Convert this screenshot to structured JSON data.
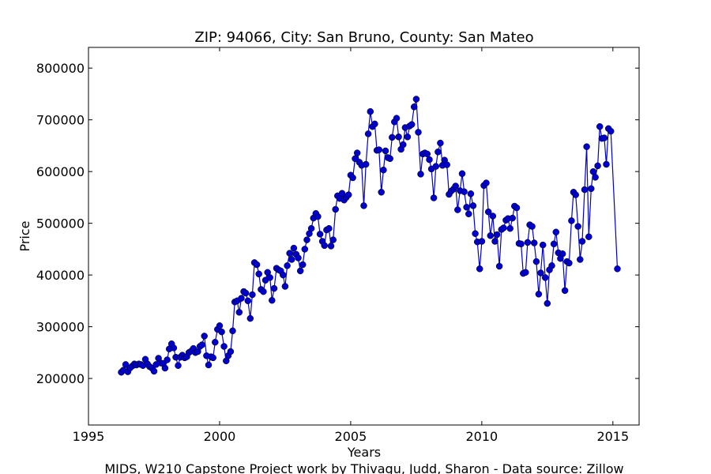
{
  "chart_data": {
    "type": "line",
    "title": "ZIP: 94066, City: San Bruno, County: San Mateo",
    "xlabel": "Years",
    "ylabel": "Price",
    "caption": "MIDS, W210 Capstone Project work by Thivagu, Judd, Sharon  -  Data source: Zillow",
    "xlim": [
      1995,
      2016
    ],
    "ylim": [
      110000,
      840000
    ],
    "x_ticks": [
      1995,
      2000,
      2005,
      2010,
      2015
    ],
    "x_tick_labels": [
      "1995",
      "2000",
      "2005",
      "2010",
      "2015"
    ],
    "y_ticks": [
      200000,
      300000,
      400000,
      500000,
      600000,
      700000,
      800000
    ],
    "y_tick_labels": [
      "200000",
      "300000",
      "400000",
      "500000",
      "600000",
      "700000",
      "800000"
    ],
    "grid": false,
    "series": [
      {
        "color": "#0000cc",
        "marker": "circle",
        "points": [
          [
            1996.25,
            212000
          ],
          [
            1996.33,
            216000
          ],
          [
            1996.42,
            227000
          ],
          [
            1996.5,
            213000
          ],
          [
            1996.58,
            220000
          ],
          [
            1996.67,
            224000
          ],
          [
            1996.75,
            228000
          ],
          [
            1996.83,
            226000
          ],
          [
            1996.92,
            228000
          ],
          [
            1997.0,
            227000
          ],
          [
            1997.08,
            225000
          ],
          [
            1997.17,
            237000
          ],
          [
            1997.25,
            228000
          ],
          [
            1997.33,
            223000
          ],
          [
            1997.42,
            220000
          ],
          [
            1997.5,
            214000
          ],
          [
            1997.58,
            227000
          ],
          [
            1997.67,
            239000
          ],
          [
            1997.75,
            230000
          ],
          [
            1997.83,
            229000
          ],
          [
            1997.92,
            220000
          ],
          [
            1998.0,
            236000
          ],
          [
            1998.08,
            257000
          ],
          [
            1998.17,
            267000
          ],
          [
            1998.25,
            259000
          ],
          [
            1998.33,
            241000
          ],
          [
            1998.42,
            225000
          ],
          [
            1998.5,
            241000
          ],
          [
            1998.58,
            245000
          ],
          [
            1998.67,
            240000
          ],
          [
            1998.75,
            242000
          ],
          [
            1998.83,
            250000
          ],
          [
            1998.92,
            253000
          ],
          [
            1999.0,
            258000
          ],
          [
            1999.08,
            250000
          ],
          [
            1999.17,
            252000
          ],
          [
            1999.25,
            262000
          ],
          [
            1999.33,
            265000
          ],
          [
            1999.42,
            282000
          ],
          [
            1999.5,
            244000
          ],
          [
            1999.58,
            226000
          ],
          [
            1999.67,
            242000
          ],
          [
            1999.75,
            240000
          ],
          [
            1999.83,
            270000
          ],
          [
            1999.92,
            295000
          ],
          [
            2000.0,
            302000
          ],
          [
            2000.08,
            290000
          ],
          [
            2000.17,
            262000
          ],
          [
            2000.25,
            234000
          ],
          [
            2000.33,
            244000
          ],
          [
            2000.42,
            252000
          ],
          [
            2000.5,
            292000
          ],
          [
            2000.58,
            348000
          ],
          [
            2000.67,
            350000
          ],
          [
            2000.75,
            328000
          ],
          [
            2000.83,
            355000
          ],
          [
            2000.92,
            368000
          ],
          [
            2001.0,
            365000
          ],
          [
            2001.08,
            350000
          ],
          [
            2001.17,
            316000
          ],
          [
            2001.25,
            362000
          ],
          [
            2001.33,
            424000
          ],
          [
            2001.42,
            420000
          ],
          [
            2001.5,
            402000
          ],
          [
            2001.58,
            372000
          ],
          [
            2001.67,
            368000
          ],
          [
            2001.75,
            390000
          ],
          [
            2001.83,
            405000
          ],
          [
            2001.92,
            395000
          ],
          [
            2002.0,
            351000
          ],
          [
            2002.08,
            374000
          ],
          [
            2002.17,
            413000
          ],
          [
            2002.25,
            410000
          ],
          [
            2002.33,
            408000
          ],
          [
            2002.42,
            400000
          ],
          [
            2002.5,
            378000
          ],
          [
            2002.58,
            418000
          ],
          [
            2002.67,
            442000
          ],
          [
            2002.75,
            430000
          ],
          [
            2002.83,
            452000
          ],
          [
            2002.92,
            440000
          ],
          [
            2003.0,
            433000
          ],
          [
            2003.08,
            408000
          ],
          [
            2003.17,
            420000
          ],
          [
            2003.25,
            450000
          ],
          [
            2003.33,
            468000
          ],
          [
            2003.42,
            480000
          ],
          [
            2003.5,
            490000
          ],
          [
            2003.58,
            510000
          ],
          [
            2003.67,
            519000
          ],
          [
            2003.75,
            513000
          ],
          [
            2003.83,
            479000
          ],
          [
            2003.92,
            465000
          ],
          [
            2004.0,
            457000
          ],
          [
            2004.08,
            487000
          ],
          [
            2004.17,
            490000
          ],
          [
            2004.25,
            456000
          ],
          [
            2004.33,
            468000
          ],
          [
            2004.42,
            527000
          ],
          [
            2004.5,
            553000
          ],
          [
            2004.58,
            548000
          ],
          [
            2004.67,
            558000
          ],
          [
            2004.75,
            545000
          ],
          [
            2004.83,
            550000
          ],
          [
            2004.92,
            555000
          ],
          [
            2005.0,
            593000
          ],
          [
            2005.08,
            588000
          ],
          [
            2005.17,
            625000
          ],
          [
            2005.25,
            636000
          ],
          [
            2005.33,
            618000
          ],
          [
            2005.42,
            612000
          ],
          [
            2005.5,
            534000
          ],
          [
            2005.58,
            614000
          ],
          [
            2005.67,
            673000
          ],
          [
            2005.75,
            716000
          ],
          [
            2005.83,
            687000
          ],
          [
            2005.92,
            692000
          ],
          [
            2006.0,
            641000
          ],
          [
            2006.08,
            642000
          ],
          [
            2006.17,
            560000
          ],
          [
            2006.25,
            603000
          ],
          [
            2006.33,
            640000
          ],
          [
            2006.42,
            627000
          ],
          [
            2006.5,
            625000
          ],
          [
            2006.58,
            666000
          ],
          [
            2006.67,
            696000
          ],
          [
            2006.75,
            703000
          ],
          [
            2006.83,
            667000
          ],
          [
            2006.92,
            643000
          ],
          [
            2007.0,
            652000
          ],
          [
            2007.08,
            685000
          ],
          [
            2007.17,
            667000
          ],
          [
            2007.25,
            688000
          ],
          [
            2007.33,
            691000
          ],
          [
            2007.42,
            725000
          ],
          [
            2007.5,
            740000
          ],
          [
            2007.58,
            676000
          ],
          [
            2007.67,
            595000
          ],
          [
            2007.75,
            634000
          ],
          [
            2007.83,
            636000
          ],
          [
            2007.92,
            634000
          ],
          [
            2008.0,
            623000
          ],
          [
            2008.08,
            605000
          ],
          [
            2008.17,
            549000
          ],
          [
            2008.25,
            610000
          ],
          [
            2008.33,
            638000
          ],
          [
            2008.42,
            655000
          ],
          [
            2008.5,
            612000
          ],
          [
            2008.58,
            622000
          ],
          [
            2008.67,
            613000
          ],
          [
            2008.75,
            556000
          ],
          [
            2008.83,
            562000
          ],
          [
            2008.92,
            566000
          ],
          [
            2009.0,
            572000
          ],
          [
            2009.08,
            526000
          ],
          [
            2009.17,
            563000
          ],
          [
            2009.25,
            596000
          ],
          [
            2009.33,
            561000
          ],
          [
            2009.42,
            531000
          ],
          [
            2009.5,
            518000
          ],
          [
            2009.58,
            557000
          ],
          [
            2009.67,
            534000
          ],
          [
            2009.75,
            480000
          ],
          [
            2009.83,
            464000
          ],
          [
            2009.92,
            412000
          ],
          [
            2010.0,
            465000
          ],
          [
            2010.08,
            573000
          ],
          [
            2010.17,
            578000
          ],
          [
            2010.25,
            522000
          ],
          [
            2010.33,
            476000
          ],
          [
            2010.42,
            514000
          ],
          [
            2010.5,
            465000
          ],
          [
            2010.58,
            478000
          ],
          [
            2010.67,
            417000
          ],
          [
            2010.75,
            488000
          ],
          [
            2010.83,
            491000
          ],
          [
            2010.92,
            506000
          ],
          [
            2011.0,
            509000
          ],
          [
            2011.08,
            490000
          ],
          [
            2011.17,
            510000
          ],
          [
            2011.25,
            533000
          ],
          [
            2011.33,
            530000
          ],
          [
            2011.42,
            461000
          ],
          [
            2011.5,
            460000
          ],
          [
            2011.58,
            403000
          ],
          [
            2011.67,
            405000
          ],
          [
            2011.75,
            463000
          ],
          [
            2011.83,
            497000
          ],
          [
            2011.92,
            494000
          ],
          [
            2012.0,
            462000
          ],
          [
            2012.08,
            426000
          ],
          [
            2012.17,
            363000
          ],
          [
            2012.25,
            404000
          ],
          [
            2012.33,
            458000
          ],
          [
            2012.42,
            395000
          ],
          [
            2012.5,
            345000
          ],
          [
            2012.58,
            410000
          ],
          [
            2012.67,
            418000
          ],
          [
            2012.75,
            460000
          ],
          [
            2012.83,
            483000
          ],
          [
            2012.92,
            443000
          ],
          [
            2013.0,
            432000
          ],
          [
            2013.08,
            441000
          ],
          [
            2013.17,
            370000
          ],
          [
            2013.25,
            426000
          ],
          [
            2013.33,
            423000
          ],
          [
            2013.42,
            505000
          ],
          [
            2013.5,
            560000
          ],
          [
            2013.58,
            555000
          ],
          [
            2013.67,
            494000
          ],
          [
            2013.75,
            430000
          ],
          [
            2013.83,
            465000
          ],
          [
            2013.92,
            565000
          ],
          [
            2014.0,
            648000
          ],
          [
            2014.08,
            474000
          ],
          [
            2014.17,
            567000
          ],
          [
            2014.25,
            600000
          ],
          [
            2014.33,
            589000
          ],
          [
            2014.42,
            611000
          ],
          [
            2014.5,
            687000
          ],
          [
            2014.58,
            664000
          ],
          [
            2014.67,
            665000
          ],
          [
            2014.75,
            614000
          ],
          [
            2014.83,
            683000
          ],
          [
            2014.92,
            678000
          ],
          [
            2015.17,
            412000
          ]
        ]
      }
    ]
  }
}
